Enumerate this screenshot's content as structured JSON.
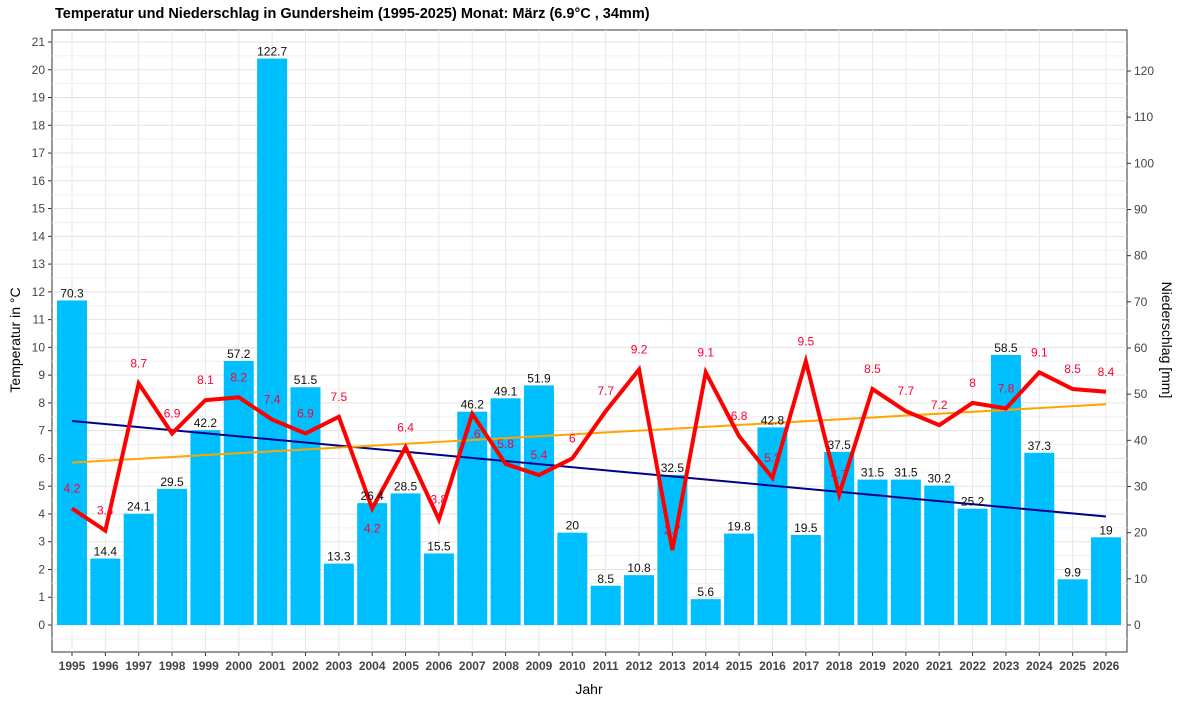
{
  "chart_data": {
    "type": "bar+line",
    "title": "Temperatur und Niederschlag in Gundersheim (1995-2025)    Monat: März (6.9°C , 34mm)",
    "xlabel": "Jahr",
    "ylabel_left": "Temperatur in °C",
    "ylabel_right": "Niederschlag [mm]",
    "ylim_left": [
      0,
      21
    ],
    "ylim_right": [
      0,
      120
    ],
    "grid": true,
    "colors": {
      "bars": "#00BFFF",
      "temperature": "#FF0000",
      "precip_trend": "#00008B",
      "temp_trend": "#FFA500",
      "temp_labels": "#FF0033"
    },
    "years": [
      1995,
      1996,
      1997,
      1998,
      1999,
      2000,
      2001,
      2002,
      2003,
      2004,
      2005,
      2006,
      2007,
      2008,
      2009,
      2010,
      2011,
      2012,
      2013,
      2014,
      2015,
      2016,
      2017,
      2018,
      2019,
      2020,
      2021,
      2022,
      2023,
      2024,
      2025,
      2026
    ],
    "precipitation_mm": [
      70.3,
      14.4,
      24.1,
      29.5,
      42.2,
      57.2,
      122.7,
      51.5,
      13.3,
      26.4,
      28.5,
      15.5,
      46.2,
      49.1,
      51.9,
      20,
      8.5,
      10.8,
      32.5,
      5.6,
      19.8,
      42.8,
      19.5,
      37.5,
      31.5,
      31.5,
      30.2,
      25.2,
      58.5,
      37.3,
      9.9,
      19
    ],
    "temperature_c": [
      4.2,
      3.4,
      8.7,
      6.9,
      8.1,
      8.2,
      7.4,
      6.9,
      7.5,
      4.2,
      6.4,
      3.8,
      7.6,
      5.8,
      5.4,
      6,
      7.7,
      9.2,
      2.7,
      9.1,
      6.8,
      5.3,
      9.5,
      4.7,
      8.5,
      7.7,
      7.2,
      8,
      7.8,
      9.1,
      8.5,
      8.4
    ],
    "precip_trend_mm": [
      44.2,
      23.5
    ],
    "temp_trend_c": [
      5.85,
      7.95
    ]
  }
}
